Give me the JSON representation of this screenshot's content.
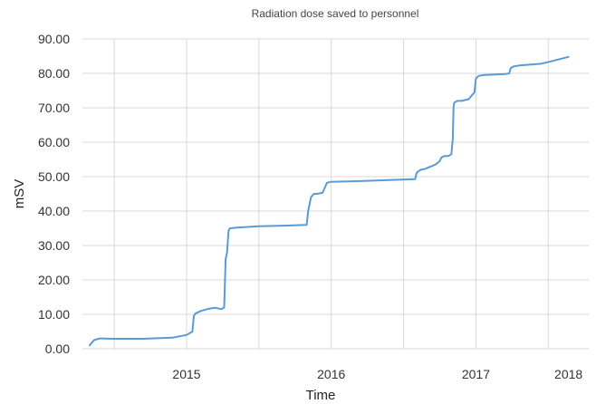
{
  "chart_data": {
    "type": "line",
    "title": "Radiation dose saved to personnel",
    "xlabel": "Time",
    "ylabel": "mSV",
    "ylim": [
      0,
      90
    ],
    "yticks": [
      "0.00",
      "10.00",
      "20.00",
      "30.00",
      "40.00",
      "50.00",
      "60.00",
      "70.00",
      "80.00",
      "90.00"
    ],
    "xticks": [
      "2015",
      "2016",
      "2017",
      "2018"
    ],
    "xlim": [
      2014.78,
      2018.28
    ],
    "grid": true,
    "legend": "none",
    "colors": {
      "series": "#5b9bd5",
      "grid": "#d9d9d9"
    },
    "series": [
      {
        "x": [
          2014.83,
          2014.86,
          2014.9,
          2015.0,
          2015.2,
          2015.4,
          2015.5,
          2015.54,
          2015.55,
          2015.56,
          2015.6,
          2015.65,
          2015.7,
          2015.74,
          2015.76,
          2015.77,
          2015.78,
          2015.79,
          2015.8,
          2015.85,
          2016.0,
          2016.2,
          2016.33,
          2016.34,
          2016.36,
          2016.38,
          2016.4,
          2016.44,
          2016.46,
          2016.47,
          2016.5,
          2016.7,
          2016.9,
          2017.08,
          2017.09,
          2017.1,
          2017.12,
          2017.15,
          2017.22,
          2017.25,
          2017.26,
          2017.28,
          2017.31,
          2017.33,
          2017.34,
          2017.345,
          2017.35,
          2017.37,
          2017.4,
          2017.45,
          2017.49,
          2017.5,
          2017.52,
          2017.55,
          2017.7,
          2017.73,
          2017.74,
          2017.76,
          2017.8,
          2017.95,
          2018.02,
          2018.14
        ],
        "y": [
          1.0,
          2.5,
          3.0,
          2.9,
          2.9,
          3.2,
          4.0,
          5.0,
          9.5,
          10.2,
          11.0,
          11.6,
          11.9,
          11.5,
          12.0,
          26.0,
          28.0,
          34.3,
          35.0,
          35.2,
          35.6,
          35.8,
          36.0,
          40.0,
          44.0,
          45.0,
          45.0,
          45.3,
          47.2,
          48.2,
          48.5,
          48.7,
          49.0,
          49.3,
          51.0,
          51.5,
          52.0,
          52.3,
          53.5,
          54.5,
          55.5,
          56.0,
          56.0,
          56.5,
          61.0,
          70.0,
          71.5,
          72.0,
          72.0,
          72.5,
          74.5,
          78.5,
          79.3,
          79.5,
          79.8,
          80.0,
          81.5,
          82.0,
          82.3,
          82.8,
          83.5,
          84.8
        ]
      }
    ]
  }
}
